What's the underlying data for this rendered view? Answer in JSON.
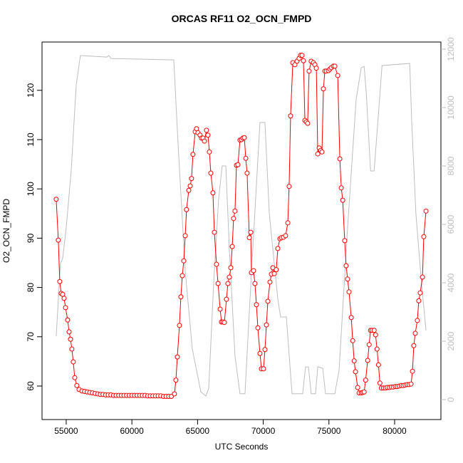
{
  "chart_data": {
    "type": "line",
    "title": "ORCAS RF11 O2_OCN_FMPD",
    "xlabel": "UTC Seconds",
    "ylabel": "O2_OCN_FMPD",
    "xlim": [
      53160,
      83525
    ],
    "xticks": [
      55000,
      60000,
      65000,
      70000,
      75000,
      80000
    ],
    "ylim": [
      53.2,
      129.8
    ],
    "yticks": [
      60,
      70,
      80,
      90,
      100,
      110,
      120
    ],
    "y2lim": [
      -683,
      12244
    ],
    "y2ticks": [
      0,
      2000,
      4000,
      6000,
      8000,
      10000,
      12000
    ],
    "y2color": "#bebebe",
    "series": [
      {
        "color": "#ff0000",
        "markers": true,
        "x": [
          54240,
          54400,
          54510,
          54620,
          54730,
          54840,
          54950,
          55110,
          55220,
          55330,
          55430,
          55540,
          55650,
          55810,
          55980,
          56200,
          56400,
          56600,
          56800,
          57000,
          57200,
          57400,
          57600,
          57800,
          58000,
          58200,
          58400,
          58600,
          58800,
          59000,
          59200,
          59400,
          59600,
          59800,
          60000,
          60200,
          60400,
          60600,
          60800,
          61000,
          61200,
          61400,
          61600,
          61800,
          62000,
          62200,
          62400,
          62600,
          62800,
          63000,
          63240,
          63350,
          63460,
          63620,
          63730,
          63840,
          63950,
          64060,
          64160,
          64330,
          64440,
          64540,
          64650,
          64820,
          64920,
          65030,
          65190,
          65300,
          65410,
          65520,
          65680,
          65790,
          65900,
          66010,
          66170,
          66280,
          66440,
          66560,
          66720,
          66820,
          66930,
          67040,
          67200,
          67310,
          67420,
          67530,
          67640,
          67740,
          67850,
          67960,
          68070,
          68230,
          68340,
          68450,
          68560,
          68670,
          68770,
          68940,
          69050,
          69100,
          69260,
          69370,
          69480,
          69590,
          69750,
          69860,
          70020,
          70130,
          70240,
          70350,
          70510,
          70620,
          70730,
          70840,
          70990,
          71110,
          71270,
          71380,
          71540,
          71700,
          71870,
          71970,
          72080,
          72250,
          72410,
          72570,
          72730,
          72840,
          72950,
          73060,
          73170,
          73280,
          73380,
          73490,
          73650,
          73820,
          73930,
          74040,
          74150,
          74260,
          74370,
          74470,
          74580,
          74690,
          74800,
          74960,
          75070,
          75180,
          75340,
          75450,
          75670,
          75830,
          75940,
          76050,
          76200,
          76310,
          76420,
          76530,
          76700,
          76810,
          76920,
          77020,
          77190,
          77300,
          77460,
          77570,
          77680,
          77790,
          77950,
          78060,
          78170,
          78280,
          78440,
          78550,
          78660,
          78770,
          78880,
          78990,
          79150,
          79300,
          79450,
          79600,
          79750,
          79900,
          80050,
          80200,
          80350,
          80500,
          80650,
          80800,
          80950,
          81100,
          81250,
          81360,
          81460,
          81570,
          81730,
          81840,
          81950,
          82120,
          82220,
          82390
        ],
        "values": [
          97.9,
          89.6,
          81.2,
          78.8,
          78.6,
          77.8,
          75.9,
          73.4,
          71.0,
          69.5,
          67.5,
          64.9,
          61.7,
          60.1,
          59.3,
          59.0,
          58.9,
          58.8,
          58.7,
          58.6,
          58.5,
          58.4,
          58.3,
          58.3,
          58.2,
          58.2,
          58.2,
          58.1,
          58.1,
          58.1,
          58.1,
          58.1,
          58.1,
          58.1,
          58.1,
          58.1,
          58.1,
          58.1,
          58.1,
          58.1,
          58.0,
          58.0,
          58.0,
          58.0,
          58.0,
          58.0,
          57.9,
          57.9,
          57.9,
          57.9,
          58.4,
          61.2,
          65.9,
          72.3,
          78.1,
          82.4,
          85.4,
          90.5,
          95.8,
          99.7,
          100.6,
          102.1,
          107.0,
          111.6,
          112.2,
          111.4,
          110.9,
          110.3,
          110.3,
          109.7,
          111.9,
          110.9,
          107.5,
          103.2,
          99.2,
          91.2,
          84.7,
          80.8,
          75.6,
          73.0,
          73.0,
          72.9,
          77.6,
          80.8,
          82.1,
          84.0,
          88.3,
          94.0,
          95.5,
          104.8,
          104.9,
          109.9,
          110.0,
          110.3,
          110.4,
          106.2,
          103.2,
          90.1,
          91.2,
          83.0,
          83.4,
          80.8,
          76.5,
          71.8,
          66.6,
          63.5,
          63.5,
          67.4,
          72.4,
          77.2,
          81.1,
          82.7,
          84.0,
          82.8,
          83.6,
          87.9,
          89.9,
          90.1,
          90.2,
          90.5,
          93.1,
          100.5,
          114.8,
          125.6,
          125.2,
          125.9,
          126.5,
          127.1,
          127.1,
          126.0,
          113.9,
          113.6,
          113.3,
          123.9,
          125.9,
          125.6,
          125.2,
          124.5,
          107.1,
          108.3,
          107.8,
          107.5,
          120.3,
          123.9,
          123.9,
          124.0,
          124.3,
          124.6,
          124.9,
          124.9,
          123.0,
          106.1,
          100.2,
          97.7,
          89.5,
          84.4,
          81.7,
          79.1,
          73.9,
          69.2,
          65.1,
          62.9,
          59.7,
          58.6,
          58.6,
          58.7,
          58.8,
          61.2,
          65.2,
          68.4,
          71.3,
          71.3,
          71.3,
          70.4,
          67.5,
          64.3,
          60.6,
          59.6,
          59.6,
          59.6,
          59.7,
          59.7,
          59.8,
          59.8,
          59.9,
          59.9,
          60.0,
          60.1,
          60.1,
          60.2,
          60.3,
          60.3,
          60.4,
          63.0,
          68.2,
          70.7,
          73.3,
          77.3,
          78.9,
          82.1,
          90.3,
          95.5
        ]
      },
      {
        "color": "#bebebe",
        "axis": "y2",
        "markers": false,
        "x": [
          54240,
          54560,
          54730,
          55000,
          55380,
          55760,
          56080,
          58090,
          58250,
          58420,
          63190,
          63510,
          64060,
          64600,
          65250,
          65630,
          65850,
          66220,
          66600,
          66870,
          67150,
          67420,
          67850,
          68230,
          68610,
          69050,
          69750,
          70130,
          70460,
          71110,
          71320,
          71760,
          72190,
          73000,
          73220,
          73440,
          73650,
          73980,
          74150,
          74530,
          74740,
          75450,
          75770,
          76420,
          77070,
          77460,
          77680,
          77840,
          78170,
          78440,
          78770,
          79040,
          81150,
          81300,
          81620,
          82060,
          82390
        ],
        "values": [
          2170,
          4660,
          4830,
          5880,
          7830,
          10760,
          11780,
          11730,
          11780,
          11680,
          11630,
          8800,
          4410,
          1730,
          270,
          120,
          390,
          3930,
          6850,
          8000,
          8000,
          5150,
          1490,
          200,
          200,
          3930,
          9490,
          9490,
          6370,
          3440,
          2830,
          2830,
          200,
          200,
          1120,
          1120,
          200,
          200,
          1120,
          1070,
          200,
          200,
          1000,
          5880,
          10270,
          11370,
          11410,
          10510,
          7830,
          7830,
          9780,
          11440,
          11510,
          9540,
          6370,
          3930,
          2370
        ]
      }
    ]
  }
}
